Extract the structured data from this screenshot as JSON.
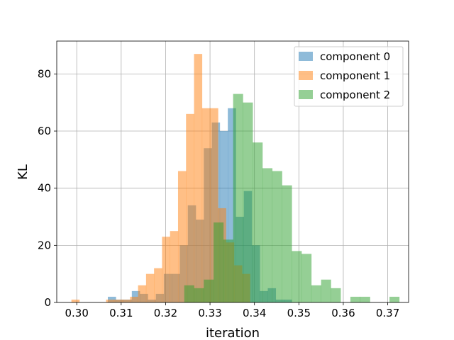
{
  "chart_data": {
    "type": "histogram",
    "title": "",
    "xlabel": "iteration",
    "ylabel": "KL",
    "xlim": [
      0.2955,
      0.3747
    ],
    "ylim": [
      0,
      91.5
    ],
    "xticks": [
      0.3,
      0.31,
      0.32,
      0.33,
      0.34,
      0.35,
      0.36,
      0.37
    ],
    "xtick_labels": [
      "0.30",
      "0.31",
      "0.32",
      "0.33",
      "0.34",
      "0.35",
      "0.36",
      "0.37"
    ],
    "yticks": [
      0,
      20,
      40,
      60,
      80
    ],
    "ytick_labels": [
      "0",
      "20",
      "40",
      "60",
      "80"
    ],
    "grid": true,
    "legend_position": "top-right",
    "series": [
      {
        "name": "component 0",
        "color": "#1f77b4",
        "alpha": 0.5,
        "bins": [
          [
            0.307,
            0.3088,
            2
          ],
          [
            0.3088,
            0.3106,
            1
          ],
          [
            0.3106,
            0.3124,
            1
          ],
          [
            0.3124,
            0.3142,
            4
          ],
          [
            0.3142,
            0.316,
            3
          ],
          [
            0.316,
            0.3178,
            1
          ],
          [
            0.3178,
            0.3196,
            3
          ],
          [
            0.3196,
            0.3214,
            10
          ],
          [
            0.3214,
            0.3232,
            10
          ],
          [
            0.3232,
            0.325,
            20
          ],
          [
            0.325,
            0.3268,
            34
          ],
          [
            0.3268,
            0.3286,
            29
          ],
          [
            0.3286,
            0.3304,
            54
          ],
          [
            0.3304,
            0.3322,
            63
          ],
          [
            0.3322,
            0.334,
            60
          ],
          [
            0.334,
            0.3358,
            68
          ],
          [
            0.3358,
            0.3376,
            30
          ],
          [
            0.3376,
            0.3394,
            39
          ],
          [
            0.3394,
            0.3412,
            20
          ],
          [
            0.3412,
            0.343,
            4
          ],
          [
            0.343,
            0.3448,
            5
          ],
          [
            0.3448,
            0.3466,
            1
          ],
          [
            0.3466,
            0.3484,
            1
          ]
        ]
      },
      {
        "name": "component 1",
        "color": "#ff7f0e",
        "alpha": 0.5,
        "bins": [
          [
            0.2988,
            0.3006,
            1
          ],
          [
            0.3066,
            0.3084,
            1
          ],
          [
            0.3084,
            0.3102,
            1
          ],
          [
            0.3102,
            0.312,
            1
          ],
          [
            0.312,
            0.3138,
            2
          ],
          [
            0.3138,
            0.3156,
            6
          ],
          [
            0.3156,
            0.3174,
            10
          ],
          [
            0.3174,
            0.3192,
            12
          ],
          [
            0.3192,
            0.321,
            23
          ],
          [
            0.321,
            0.3228,
            25
          ],
          [
            0.3228,
            0.3246,
            46
          ],
          [
            0.3246,
            0.3264,
            66
          ],
          [
            0.3264,
            0.3282,
            87
          ],
          [
            0.3282,
            0.33,
            68
          ],
          [
            0.33,
            0.3318,
            68
          ],
          [
            0.3318,
            0.3336,
            33
          ],
          [
            0.3336,
            0.3354,
            21
          ],
          [
            0.3354,
            0.3372,
            13
          ],
          [
            0.3372,
            0.339,
            10
          ]
        ]
      },
      {
        "name": "component 2",
        "color": "#2ca02c",
        "alpha": 0.5,
        "bins": [
          [
            0.3242,
            0.3264,
            6
          ],
          [
            0.3264,
            0.3286,
            5
          ],
          [
            0.3286,
            0.3308,
            8
          ],
          [
            0.3308,
            0.333,
            28
          ],
          [
            0.333,
            0.3352,
            22
          ],
          [
            0.3352,
            0.3374,
            73
          ],
          [
            0.3374,
            0.3396,
            70
          ],
          [
            0.3396,
            0.3418,
            56
          ],
          [
            0.3418,
            0.344,
            47
          ],
          [
            0.344,
            0.3462,
            46
          ],
          [
            0.3462,
            0.3484,
            41
          ],
          [
            0.3484,
            0.3506,
            18
          ],
          [
            0.3506,
            0.3528,
            17
          ],
          [
            0.3528,
            0.355,
            6
          ],
          [
            0.355,
            0.3572,
            8
          ],
          [
            0.3572,
            0.3594,
            5
          ],
          [
            0.3594,
            0.3616,
            0
          ],
          [
            0.3616,
            0.3638,
            2
          ],
          [
            0.3638,
            0.366,
            2
          ],
          [
            0.3704,
            0.3726,
            2
          ]
        ]
      }
    ]
  }
}
